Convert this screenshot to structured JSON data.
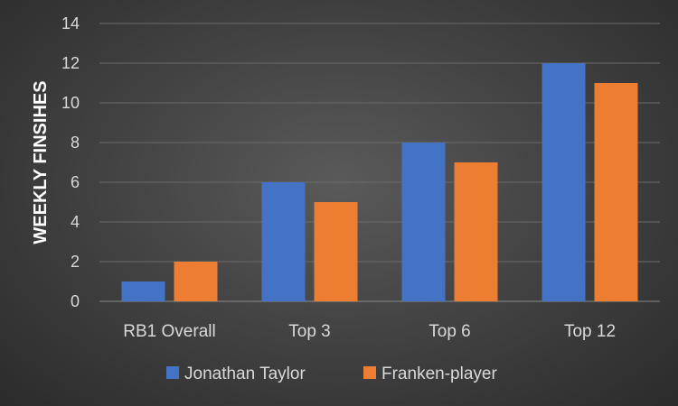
{
  "chart_data": {
    "type": "bar",
    "categories": [
      "RB1 Overall",
      "Top 3",
      "Top 6",
      "Top 12"
    ],
    "series": [
      {
        "name": "Jonathan Taylor",
        "values": [
          1,
          6,
          8,
          12
        ],
        "color": "#4472c4"
      },
      {
        "name": "Franken-player",
        "values": [
          2,
          5,
          7,
          11
        ],
        "color": "#ed7d31"
      }
    ],
    "title": "",
    "xlabel": "",
    "ylabel": "WEEKLY FINSIHES",
    "ylim": [
      0,
      14
    ],
    "yticks": [
      "0",
      "2",
      "4",
      "6",
      "8",
      "10",
      "12",
      "14"
    ],
    "grid": true,
    "legend": "bottom"
  }
}
